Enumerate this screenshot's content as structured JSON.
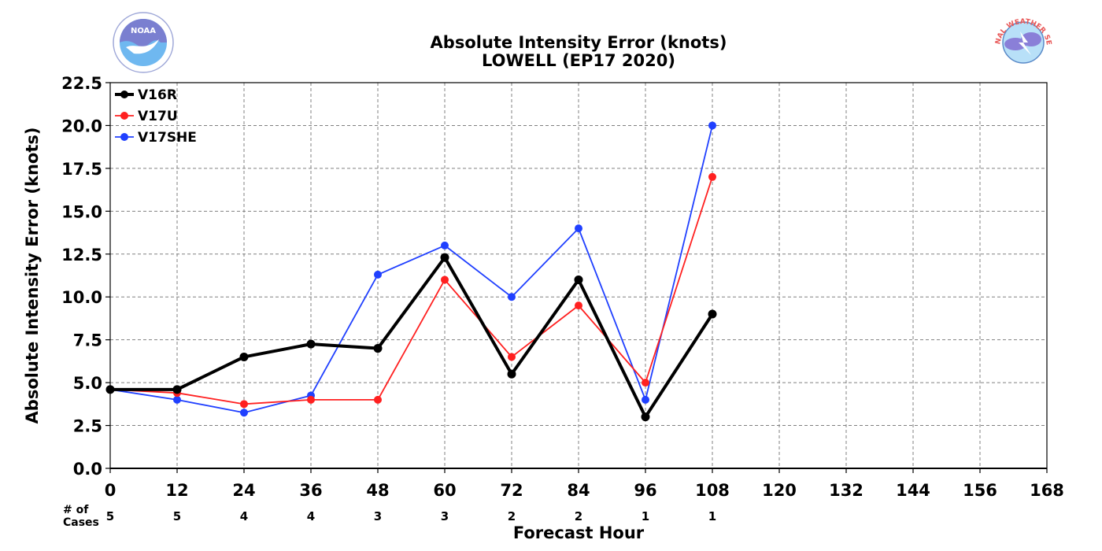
{
  "chart_data": {
    "type": "line",
    "title": "Absolute Intensity Error (knots)",
    "subtitle": "LOWELL (EP17 2020)",
    "xlabel": "Forecast Hour",
    "ylabel": "Absolute Intensity Error (knots)",
    "xlim": [
      0,
      168
    ],
    "ylim": [
      0,
      22.5
    ],
    "x_ticks": [
      "0",
      "12",
      "24",
      "36",
      "48",
      "60",
      "72",
      "84",
      "96",
      "108",
      "120",
      "132",
      "144",
      "156",
      "168"
    ],
    "y_ticks": [
      "0.0",
      "2.5",
      "5.0",
      "7.5",
      "10.0",
      "12.5",
      "15.0",
      "17.5",
      "20.0",
      "22.5"
    ],
    "grid": true,
    "legend_position": "top-left",
    "x": [
      0,
      12,
      24,
      36,
      48,
      60,
      72,
      84,
      96,
      108
    ],
    "series": [
      {
        "name": "V16R",
        "color": "#000000",
        "values": [
          4.6,
          4.6,
          6.5,
          7.25,
          7.0,
          12.3,
          5.5,
          11.0,
          3.0,
          9.0
        ]
      },
      {
        "name": "V17U",
        "color": "#ff2020",
        "values": [
          4.6,
          4.4,
          3.75,
          4.0,
          4.0,
          11.0,
          6.5,
          9.5,
          5.0,
          17.0
        ]
      },
      {
        "name": "V17SHE",
        "color": "#2040ff",
        "values": [
          4.6,
          4.0,
          3.25,
          4.25,
          11.3,
          13.0,
          10.0,
          14.0,
          4.0,
          20.0
        ]
      }
    ],
    "cases_label": "# of Cases",
    "cases_label_line1": "# of",
    "cases_label_line2": "Cases",
    "cases": [
      "5",
      "5",
      "4",
      "4",
      "3",
      "3",
      "2",
      "2",
      "1",
      "1"
    ]
  },
  "logos": {
    "left": "NOAA",
    "right": "NATIONAL WEATHER SERVICE"
  }
}
